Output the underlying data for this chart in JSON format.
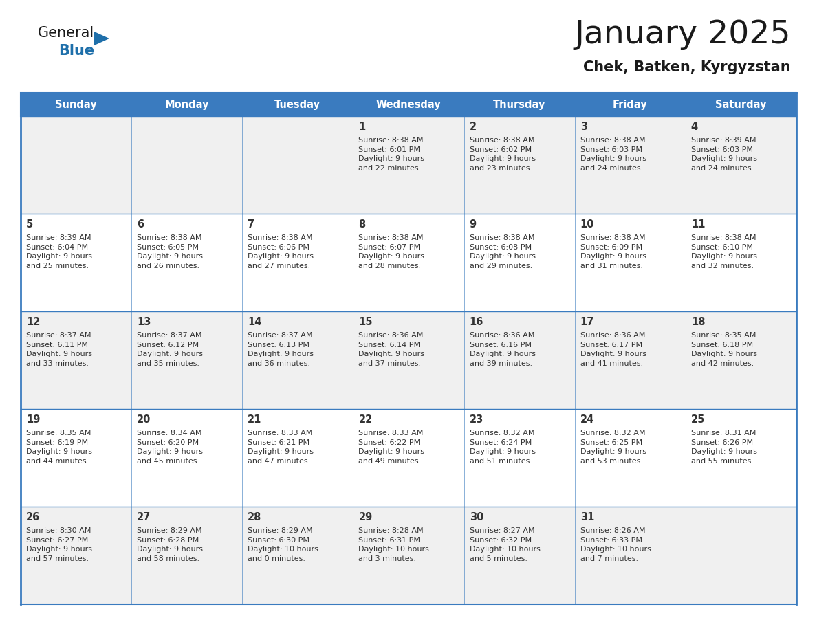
{
  "title": "January 2025",
  "subtitle": "Chek, Batken, Kyrgyzstan",
  "days_of_week": [
    "Sunday",
    "Monday",
    "Tuesday",
    "Wednesday",
    "Thursday",
    "Friday",
    "Saturday"
  ],
  "header_bg": "#3a7bbf",
  "header_text": "#ffffff",
  "row_bg_odd": "#f0f0f0",
  "row_bg_even": "#ffffff",
  "border_color": "#3a7bbf",
  "text_color": "#333333",
  "calendar_data": [
    [
      {
        "day": null,
        "info": null
      },
      {
        "day": null,
        "info": null
      },
      {
        "day": null,
        "info": null
      },
      {
        "day": 1,
        "info": "Sunrise: 8:38 AM\nSunset: 6:01 PM\nDaylight: 9 hours\nand 22 minutes."
      },
      {
        "day": 2,
        "info": "Sunrise: 8:38 AM\nSunset: 6:02 PM\nDaylight: 9 hours\nand 23 minutes."
      },
      {
        "day": 3,
        "info": "Sunrise: 8:38 AM\nSunset: 6:03 PM\nDaylight: 9 hours\nand 24 minutes."
      },
      {
        "day": 4,
        "info": "Sunrise: 8:39 AM\nSunset: 6:03 PM\nDaylight: 9 hours\nand 24 minutes."
      }
    ],
    [
      {
        "day": 5,
        "info": "Sunrise: 8:39 AM\nSunset: 6:04 PM\nDaylight: 9 hours\nand 25 minutes."
      },
      {
        "day": 6,
        "info": "Sunrise: 8:38 AM\nSunset: 6:05 PM\nDaylight: 9 hours\nand 26 minutes."
      },
      {
        "day": 7,
        "info": "Sunrise: 8:38 AM\nSunset: 6:06 PM\nDaylight: 9 hours\nand 27 minutes."
      },
      {
        "day": 8,
        "info": "Sunrise: 8:38 AM\nSunset: 6:07 PM\nDaylight: 9 hours\nand 28 minutes."
      },
      {
        "day": 9,
        "info": "Sunrise: 8:38 AM\nSunset: 6:08 PM\nDaylight: 9 hours\nand 29 minutes."
      },
      {
        "day": 10,
        "info": "Sunrise: 8:38 AM\nSunset: 6:09 PM\nDaylight: 9 hours\nand 31 minutes."
      },
      {
        "day": 11,
        "info": "Sunrise: 8:38 AM\nSunset: 6:10 PM\nDaylight: 9 hours\nand 32 minutes."
      }
    ],
    [
      {
        "day": 12,
        "info": "Sunrise: 8:37 AM\nSunset: 6:11 PM\nDaylight: 9 hours\nand 33 minutes."
      },
      {
        "day": 13,
        "info": "Sunrise: 8:37 AM\nSunset: 6:12 PM\nDaylight: 9 hours\nand 35 minutes."
      },
      {
        "day": 14,
        "info": "Sunrise: 8:37 AM\nSunset: 6:13 PM\nDaylight: 9 hours\nand 36 minutes."
      },
      {
        "day": 15,
        "info": "Sunrise: 8:36 AM\nSunset: 6:14 PM\nDaylight: 9 hours\nand 37 minutes."
      },
      {
        "day": 16,
        "info": "Sunrise: 8:36 AM\nSunset: 6:16 PM\nDaylight: 9 hours\nand 39 minutes."
      },
      {
        "day": 17,
        "info": "Sunrise: 8:36 AM\nSunset: 6:17 PM\nDaylight: 9 hours\nand 41 minutes."
      },
      {
        "day": 18,
        "info": "Sunrise: 8:35 AM\nSunset: 6:18 PM\nDaylight: 9 hours\nand 42 minutes."
      }
    ],
    [
      {
        "day": 19,
        "info": "Sunrise: 8:35 AM\nSunset: 6:19 PM\nDaylight: 9 hours\nand 44 minutes."
      },
      {
        "day": 20,
        "info": "Sunrise: 8:34 AM\nSunset: 6:20 PM\nDaylight: 9 hours\nand 45 minutes."
      },
      {
        "day": 21,
        "info": "Sunrise: 8:33 AM\nSunset: 6:21 PM\nDaylight: 9 hours\nand 47 minutes."
      },
      {
        "day": 22,
        "info": "Sunrise: 8:33 AM\nSunset: 6:22 PM\nDaylight: 9 hours\nand 49 minutes."
      },
      {
        "day": 23,
        "info": "Sunrise: 8:32 AM\nSunset: 6:24 PM\nDaylight: 9 hours\nand 51 minutes."
      },
      {
        "day": 24,
        "info": "Sunrise: 8:32 AM\nSunset: 6:25 PM\nDaylight: 9 hours\nand 53 minutes."
      },
      {
        "day": 25,
        "info": "Sunrise: 8:31 AM\nSunset: 6:26 PM\nDaylight: 9 hours\nand 55 minutes."
      }
    ],
    [
      {
        "day": 26,
        "info": "Sunrise: 8:30 AM\nSunset: 6:27 PM\nDaylight: 9 hours\nand 57 minutes."
      },
      {
        "day": 27,
        "info": "Sunrise: 8:29 AM\nSunset: 6:28 PM\nDaylight: 9 hours\nand 58 minutes."
      },
      {
        "day": 28,
        "info": "Sunrise: 8:29 AM\nSunset: 6:30 PM\nDaylight: 10 hours\nand 0 minutes."
      },
      {
        "day": 29,
        "info": "Sunrise: 8:28 AM\nSunset: 6:31 PM\nDaylight: 10 hours\nand 3 minutes."
      },
      {
        "day": 30,
        "info": "Sunrise: 8:27 AM\nSunset: 6:32 PM\nDaylight: 10 hours\nand 5 minutes."
      },
      {
        "day": 31,
        "info": "Sunrise: 8:26 AM\nSunset: 6:33 PM\nDaylight: 10 hours\nand 7 minutes."
      },
      {
        "day": null,
        "info": null
      }
    ]
  ],
  "logo_text_general": "General",
  "logo_text_blue": "Blue",
  "logo_triangle_color": "#1e6faa",
  "fig_width": 11.88,
  "fig_height": 9.18,
  "dpi": 100
}
